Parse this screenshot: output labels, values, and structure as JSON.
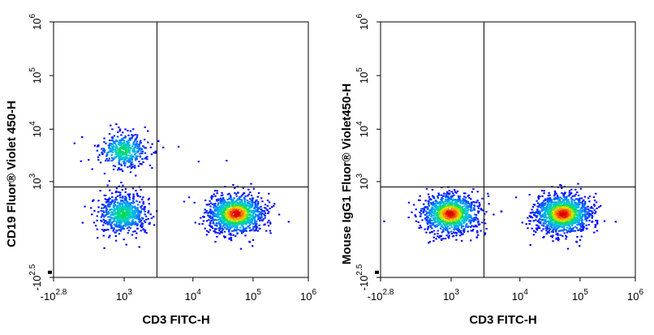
{
  "chart_data": [
    {
      "type": "scatter",
      "style": "pseudocolor density dot plot",
      "xlabel": "CD3 FITC-H",
      "ylabel": "CD19 Fluor® Violet 450-H",
      "x_scale": "biexponential",
      "y_scale": "biexponential",
      "xlim": [
        -631,
        1000000
      ],
      "ylim": [
        -316,
        1000000
      ],
      "x_ticks": [
        {
          "base": "-10",
          "exp": "2.8",
          "value": -631
        },
        {
          "base": "10",
          "exp": "3",
          "value": 1000
        },
        {
          "base": "10",
          "exp": "4",
          "value": 10000
        },
        {
          "base": "10",
          "exp": "5",
          "value": 100000
        },
        {
          "base": "10",
          "exp": "6",
          "value": 1000000
        }
      ],
      "y_ticks": [
        {
          "base": "-10",
          "exp": "2.5",
          "value": -316
        },
        {
          "base": "10",
          "exp": "3",
          "value": 1000
        },
        {
          "base": "10",
          "exp": "4",
          "value": 10000
        },
        {
          "base": "10",
          "exp": "5",
          "value": 100000
        },
        {
          "base": "10",
          "exp": "6",
          "value": 1000000
        }
      ],
      "gates": {
        "x": 3000,
        "y": 550
      },
      "populations": [
        {
          "x": 550,
          "y": 4000,
          "events": 420
        },
        {
          "x": 500,
          "y": 30,
          "events": 700
        },
        {
          "x": 50000,
          "y": 30,
          "events": 1200
        },
        {
          "x": 6000,
          "y": 4800,
          "events": 1
        },
        {
          "x": 35000,
          "y": 2600,
          "events": 1
        },
        {
          "x": 7200,
          "y": 120,
          "events": 1
        },
        {
          "x": 12000,
          "y": 2500,
          "events": 1
        }
      ]
    },
    {
      "type": "scatter",
      "style": "pseudocolor density dot plot",
      "xlabel": "CD3 FITC-H",
      "ylabel": "Mouse IgG1 Fluor® Violet450-H",
      "x_scale": "biexponential",
      "y_scale": "biexponential",
      "xlim": [
        -631,
        1000000
      ],
      "ylim": [
        -316,
        1000000
      ],
      "x_ticks": [
        {
          "base": "-10",
          "exp": "2.8",
          "value": -631
        },
        {
          "base": "10",
          "exp": "3",
          "value": 1000
        },
        {
          "base": "10",
          "exp": "4",
          "value": 10000
        },
        {
          "base": "10",
          "exp": "5",
          "value": 100000
        },
        {
          "base": "10",
          "exp": "6",
          "value": 1000000
        }
      ],
      "y_ticks": [
        {
          "base": "-10",
          "exp": "2.5",
          "value": -316
        },
        {
          "base": "10",
          "exp": "3",
          "value": 1000
        },
        {
          "base": "10",
          "exp": "4",
          "value": 10000
        },
        {
          "base": "10",
          "exp": "5",
          "value": 100000
        },
        {
          "base": "10",
          "exp": "6",
          "value": 1000000
        }
      ],
      "gates": {
        "x": 3000,
        "y": 550
      },
      "populations": [
        {
          "x": 550,
          "y": 30,
          "events": 1100
        },
        {
          "x": 50000,
          "y": 30,
          "events": 1300
        },
        {
          "x": 5200,
          "y": 40,
          "events": 6
        }
      ]
    }
  ]
}
